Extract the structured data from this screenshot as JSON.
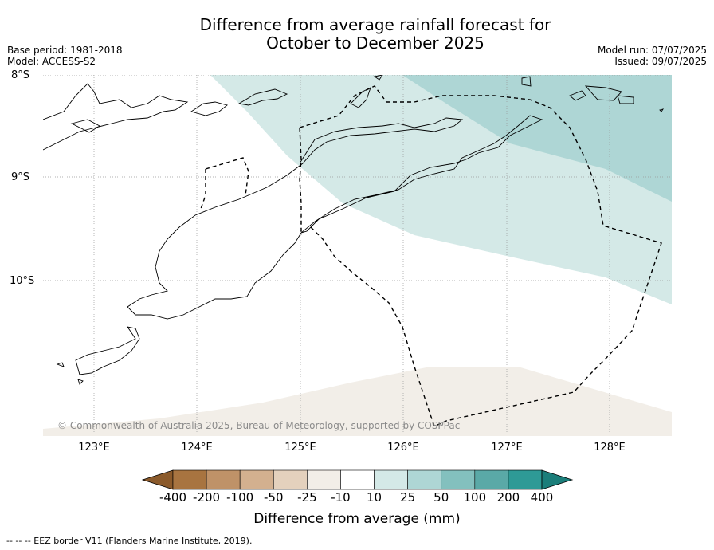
{
  "title_line1": "Difference from average rainfall forecast for",
  "title_line2": "October to December 2025",
  "meta_left": [
    "Base period: 1981-2018",
    "Model: ACCESS-S2"
  ],
  "meta_right": [
    "Model run: 07/07/2025",
    "Issued: 09/07/2025"
  ],
  "lat_labels": [
    "8°S",
    "9°S",
    "10°S"
  ],
  "lon_labels": [
    "123°E",
    "124°E",
    "125°E",
    "126°E",
    "127°E",
    "128°E"
  ],
  "copyright": "© Commonwealth of Australia 2025, Bureau of Meteorology, supported by COSPPac",
  "colorbar": {
    "label": "Difference from average (mm)",
    "ticks": [
      "-400",
      "-200",
      "-100",
      "-50",
      "-25",
      "-10",
      "10",
      "25",
      "50",
      "100",
      "200",
      "400"
    ],
    "colors": [
      "#8b5a2b",
      "#a87440",
      "#bf9268",
      "#d3b08f",
      "#e4d1bd",
      "#f2eee8",
      "#ffffff",
      "#d4e9e7",
      "#aed6d5",
      "#83c0be",
      "#5aa9a7",
      "#2e9a96",
      "#1b7e7a"
    ]
  },
  "legend_note": "--  --  -- EEZ border V11 (Flanders Marine Institute, 2019).",
  "regions": {
    "light_teal": "#d4e9e7",
    "mid_teal": "#aed6d5",
    "light_brown": "#f2eee8"
  }
}
